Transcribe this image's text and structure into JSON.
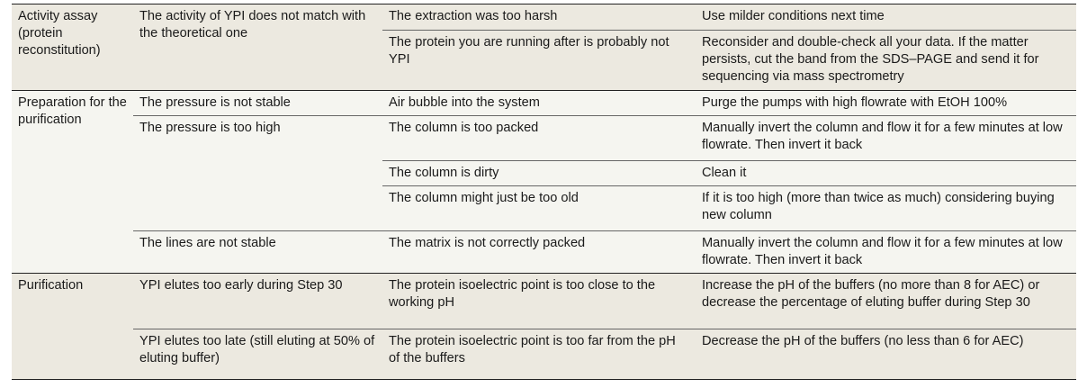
{
  "groups": [
    {
      "step": "Activity assay (protein reconstitution)",
      "problems": [
        {
          "problem": "The activity of YPI does not match with the theoretical one",
          "causes": [
            {
              "cause": "The extraction was too harsh",
              "solution": "Use milder conditions next time"
            },
            {
              "cause": "The protein you are running after is probably not YPI",
              "solution": "Reconsider and double-check all your data. If the matter persists, cut the band from the SDS–PAGE and send it for sequencing via mass spectrometry"
            }
          ]
        }
      ]
    },
    {
      "step": "Preparation for the purification",
      "problems": [
        {
          "problem": "The pressure is not stable",
          "causes": [
            {
              "cause": "Air bubble into the system",
              "solution": "Purge the pumps with high flowrate with EtOH 100%"
            }
          ]
        },
        {
          "problem": "The pressure is too high",
          "causes": [
            {
              "cause": "The column is too packed",
              "solution": "Manually invert the column and flow it for a few minutes at low flowrate. Then invert it back"
            },
            {
              "cause": "The column is dirty",
              "solution": "Clean it"
            },
            {
              "cause": "The column might just be too old",
              "solution": "If it is too high (more than twice as much) considering buying new column"
            }
          ]
        },
        {
          "problem": "The lines are not stable",
          "causes": [
            {
              "cause": "The matrix is not correctly packed",
              "solution": "Manually invert the column and flow it for a few minutes at low flowrate. Then invert it back"
            }
          ]
        }
      ]
    },
    {
      "step": "Purification",
      "problems": [
        {
          "problem": "YPI elutes too early during Step 30",
          "causes": [
            {
              "cause": "The protein isoelectric point is too close to the working pH",
              "solution": "Increase the pH of the buffers (no more than 8 for AEC) or decrease the percentage of eluting buffer during Step 30"
            }
          ]
        },
        {
          "problem": "YPI elutes too late (still eluting at 50% of eluting buffer)",
          "causes": [
            {
              "cause": "The protein isoelectric point is too far from the pH of the buffers",
              "solution": "Decrease the pH of the buffers (no less than 6 for AEC)"
            }
          ]
        }
      ]
    }
  ]
}
